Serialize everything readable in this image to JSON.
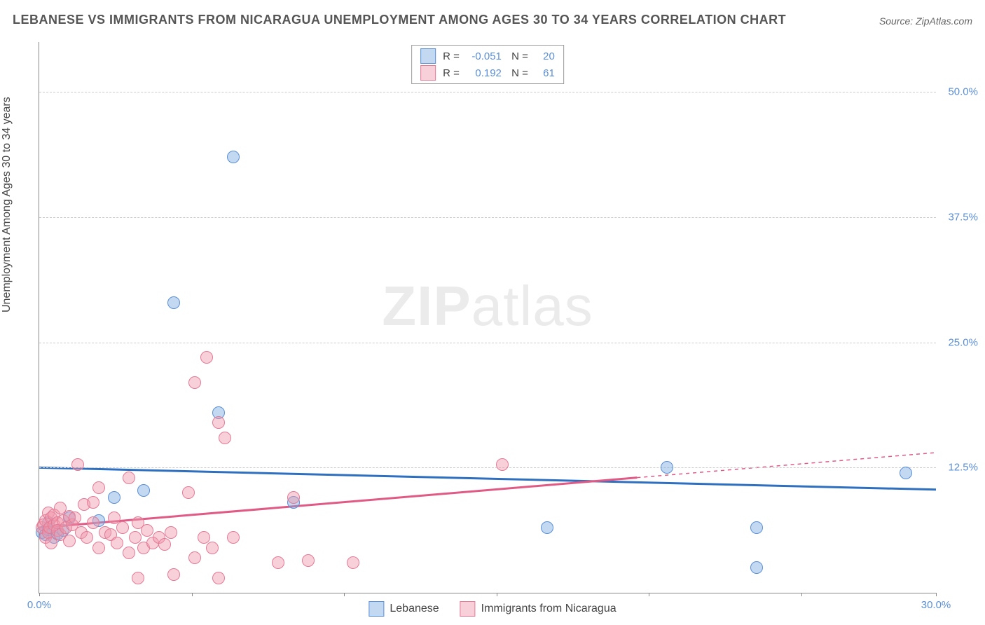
{
  "title": "LEBANESE VS IMMIGRANTS FROM NICARAGUA UNEMPLOYMENT AMONG AGES 30 TO 34 YEARS CORRELATION CHART",
  "source": "Source: ZipAtlas.com",
  "ylabel": "Unemployment Among Ages 30 to 34 years",
  "watermark": {
    "bold": "ZIP",
    "rest": "atlas"
  },
  "chart": {
    "type": "scatter",
    "xlim": [
      0,
      30
    ],
    "ylim": [
      0,
      55
    ],
    "ytick_step": 12.5,
    "yticks": [
      12.5,
      25.0,
      37.5,
      50.0
    ],
    "xticks_minor": [
      0,
      5.1,
      10.2,
      15.3,
      20.4,
      25.5,
      30
    ],
    "xtick_labels": {
      "0": "0.0%",
      "30": "30.0%"
    },
    "background_color": "#ffffff",
    "grid_color": "#cccccc",
    "axis_color": "#888888",
    "marker_radius": 9,
    "series": [
      {
        "name": "Lebanese",
        "fill": "rgba(120,170,225,0.45)",
        "stroke": "#5b8fd6",
        "trend_color": "#2f6fc0",
        "R": "-0.051",
        "N": "20",
        "trend": {
          "y_at_x0": 12.5,
          "y_at_xmax": 10.3,
          "x_solid_end": 30
        },
        "points": [
          [
            0.1,
            6.0
          ],
          [
            0.2,
            5.8
          ],
          [
            0.3,
            6.3
          ],
          [
            0.3,
            7.0
          ],
          [
            0.5,
            5.5
          ],
          [
            0.6,
            5.9
          ],
          [
            0.8,
            6.2
          ],
          [
            1.0,
            7.5
          ],
          [
            2.0,
            7.2
          ],
          [
            2.5,
            9.5
          ],
          [
            3.5,
            10.2
          ],
          [
            4.5,
            29.0
          ],
          [
            6.0,
            18.0
          ],
          [
            6.5,
            43.5
          ],
          [
            8.5,
            9.0
          ],
          [
            17.0,
            6.5
          ],
          [
            21.0,
            12.5
          ],
          [
            24.0,
            6.5
          ],
          [
            24.0,
            2.5
          ],
          [
            29.0,
            12.0
          ]
        ]
      },
      {
        "name": "Immigrants from Nicaragua",
        "fill": "rgba(240,150,170,0.45)",
        "stroke": "#e47a95",
        "trend_color": "#e05a85",
        "R": "0.192",
        "N": "61",
        "trend": {
          "y_at_x0": 6.5,
          "y_at_xmax": 14.0,
          "x_solid_end": 20
        },
        "points": [
          [
            0.1,
            6.5
          ],
          [
            0.15,
            6.8
          ],
          [
            0.2,
            5.5
          ],
          [
            0.2,
            7.2
          ],
          [
            0.3,
            6.0
          ],
          [
            0.3,
            8.0
          ],
          [
            0.35,
            6.5
          ],
          [
            0.4,
            7.5
          ],
          [
            0.4,
            5.0
          ],
          [
            0.5,
            6.8
          ],
          [
            0.5,
            7.8
          ],
          [
            0.6,
            7.0
          ],
          [
            0.6,
            6.2
          ],
          [
            0.7,
            5.8
          ],
          [
            0.7,
            8.5
          ],
          [
            0.8,
            7.2
          ],
          [
            0.9,
            6.5
          ],
          [
            1.0,
            7.6
          ],
          [
            1.0,
            5.2
          ],
          [
            1.1,
            6.8
          ],
          [
            1.2,
            7.5
          ],
          [
            1.3,
            12.8
          ],
          [
            1.4,
            6.0
          ],
          [
            1.5,
            8.8
          ],
          [
            1.6,
            5.5
          ],
          [
            1.8,
            7.0
          ],
          [
            1.8,
            9.0
          ],
          [
            2.0,
            10.5
          ],
          [
            2.0,
            4.5
          ],
          [
            2.2,
            6.0
          ],
          [
            2.4,
            5.8
          ],
          [
            2.5,
            7.5
          ],
          [
            2.6,
            5.0
          ],
          [
            2.8,
            6.5
          ],
          [
            3.0,
            4.0
          ],
          [
            3.0,
            11.5
          ],
          [
            3.2,
            5.5
          ],
          [
            3.3,
            7.0
          ],
          [
            3.3,
            1.5
          ],
          [
            3.5,
            4.5
          ],
          [
            3.6,
            6.2
          ],
          [
            3.8,
            5.0
          ],
          [
            4.0,
            5.5
          ],
          [
            4.2,
            4.8
          ],
          [
            4.4,
            6.0
          ],
          [
            4.5,
            1.8
          ],
          [
            5.0,
            10.0
          ],
          [
            5.2,
            3.5
          ],
          [
            5.2,
            21.0
          ],
          [
            5.5,
            5.5
          ],
          [
            5.6,
            23.5
          ],
          [
            5.8,
            4.5
          ],
          [
            6.0,
            1.5
          ],
          [
            6.0,
            17.0
          ],
          [
            6.2,
            15.5
          ],
          [
            6.5,
            5.5
          ],
          [
            8.0,
            3.0
          ],
          [
            8.5,
            9.5
          ],
          [
            9.0,
            3.2
          ],
          [
            10.5,
            3.0
          ],
          [
            15.5,
            12.8
          ]
        ]
      }
    ]
  },
  "legend_bottom": [
    {
      "label": "Lebanese",
      "fill": "rgba(120,170,225,0.45)",
      "stroke": "#5b8fd6"
    },
    {
      "label": "Immigrants from Nicaragua",
      "fill": "rgba(240,150,170,0.45)",
      "stroke": "#e47a95"
    }
  ]
}
